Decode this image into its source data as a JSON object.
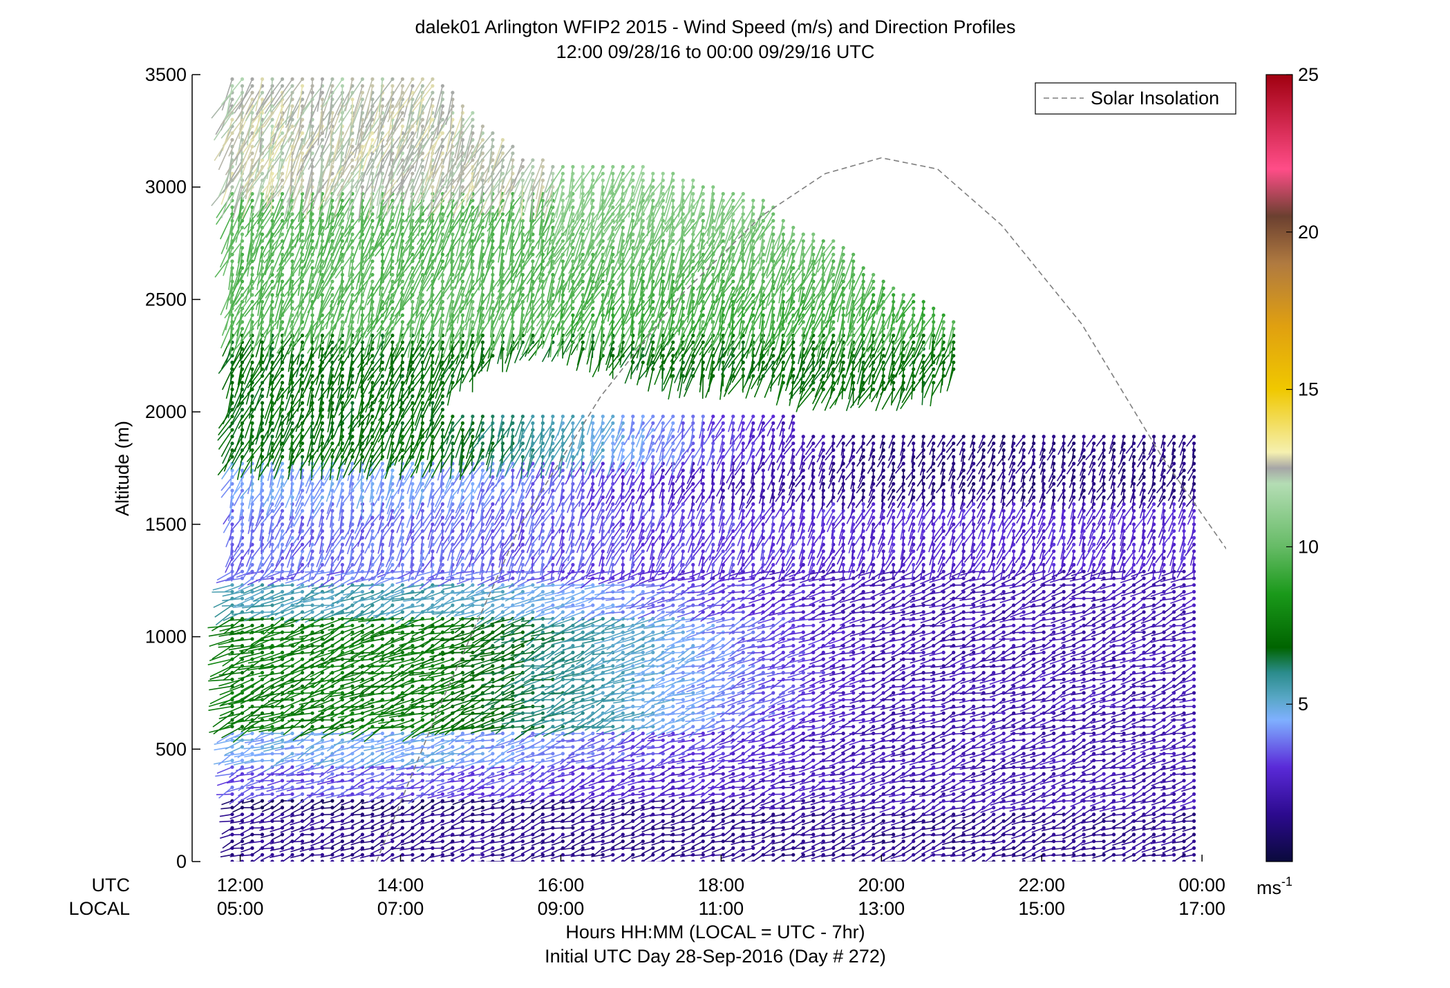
{
  "chart_data": {
    "type": "wind-barb-profile",
    "title": "dalek01 Arlington WFIP2 2015 - Wind Speed (m/s) and Direction Profiles",
    "subtitle": "12:00 09/28/16 to 00:00 09/29/16  UTC",
    "ylabel": "Altitude (m)",
    "xlabel": "Hours HH:MM  (LOCAL = UTC - 7hr)",
    "xlabel2": "Initial UTC Day 28-Sep-2016 (Day # 272)",
    "row_label_utc": "UTC",
    "row_label_local": "LOCAL",
    "ylim": [
      0,
      3500
    ],
    "yticks": [
      0,
      500,
      1000,
      1500,
      2000,
      2500,
      3000,
      3500
    ],
    "xlim_hours": [
      11.4,
      24.3
    ],
    "xticks_hours": [
      12,
      14,
      16,
      18,
      20,
      22,
      24
    ],
    "xtick_labels_utc": [
      "12:00",
      "14:00",
      "16:00",
      "18:00",
      "20:00",
      "22:00",
      "00:00"
    ],
    "xtick_labels_local": [
      "05:00",
      "07:00",
      "09:00",
      "11:00",
      "13:00",
      "15:00",
      "17:00"
    ],
    "legend": {
      "label": "Solar Insolation",
      "placement": "top-right",
      "style": "dashed",
      "color": "#7f7f7f"
    },
    "solar_insolation": {
      "x_hours": [
        13.7,
        14.5,
        15.5,
        16.5,
        17.5,
        18.5,
        19.3,
        20.0,
        20.7,
        21.5,
        22.5,
        23.5,
        24.5
      ],
      "y_m": [
        0,
        700,
        1500,
        2070,
        2520,
        2870,
        3060,
        3130,
        3080,
        2830,
        2390,
        1800,
        1290
      ]
    },
    "colorbar": {
      "label": "ms-1",
      "min": 0,
      "max": 25,
      "ticks": [
        5,
        10,
        15,
        20,
        25
      ],
      "stops": [
        {
          "v": 0,
          "c": "#0a0a3c"
        },
        {
          "v": 1.5,
          "c": "#2c0a8e"
        },
        {
          "v": 3,
          "c": "#5a2ad8"
        },
        {
          "v": 4.5,
          "c": "#7fb0ff"
        },
        {
          "v": 5.2,
          "c": "#58a7c6"
        },
        {
          "v": 6,
          "c": "#2b8c8c"
        },
        {
          "v": 6.8,
          "c": "#006400"
        },
        {
          "v": 8.5,
          "c": "#1a991a"
        },
        {
          "v": 10,
          "c": "#66bb66"
        },
        {
          "v": 12,
          "c": "#b4ddb4"
        },
        {
          "v": 12.5,
          "c": "#a6a6a6"
        },
        {
          "v": 13,
          "c": "#f5f0b0"
        },
        {
          "v": 15,
          "c": "#f0c800"
        },
        {
          "v": 17,
          "c": "#e0a010"
        },
        {
          "v": 19,
          "c": "#b07a40"
        },
        {
          "v": 20.5,
          "c": "#6b4030"
        },
        {
          "v": 22,
          "c": "#ff4d88"
        },
        {
          "v": 25,
          "c": "#a00010"
        }
      ]
    },
    "profiles": {
      "time_step_hours": 0.125,
      "altitude_step_m": 30,
      "max_top_m": 3500,
      "valid_top_m": [
        [
          11.9,
          13.4,
          2330
        ],
        [
          13.4,
          14.6,
          2330
        ],
        [
          14.6,
          16.4,
          2000
        ],
        [
          16.4,
          19.0,
          2000
        ],
        [
          19.0,
          20.5,
          1910
        ],
        [
          20.5,
          23.5,
          1910
        ],
        [
          23.5,
          24.0,
          1910
        ]
      ],
      "upper_layer": {
        "x_hours": [
          11.9,
          12.5,
          13.0,
          13.5,
          14.0,
          14.5,
          15.0,
          15.5,
          16.0,
          16.5,
          17.0,
          17.5,
          18.0,
          18.5,
          19.0,
          19.5,
          20.0,
          20.5,
          21.0
        ],
        "bottom_m": [
          2000,
          2000,
          2000,
          2000,
          2000,
          2100,
          2200,
          2300,
          2300,
          2250,
          2200,
          2150,
          2150,
          2150,
          2100,
          2100,
          2100,
          2100,
          2200
        ],
        "top_m": [
          3500,
          3500,
          3500,
          3500,
          3500,
          3480,
          3300,
          3150,
          3100,
          3100,
          3100,
          3050,
          3000,
          2950,
          2820,
          2750,
          2600,
          2500,
          2380
        ]
      },
      "speed_layers_early": [
        {
          "alt": [
            0,
            230
          ],
          "speed": 1.5
        },
        {
          "alt": [
            230,
            300
          ],
          "speed": 0.8
        },
        {
          "alt": [
            300,
            450
          ],
          "speed": 3.5
        },
        {
          "alt": [
            450,
            600
          ],
          "speed": 4.6
        },
        {
          "alt": [
            600,
            1100
          ],
          "speed": 7.5
        },
        {
          "alt": [
            1100,
            1250
          ],
          "speed": 5.5
        },
        {
          "alt": [
            1250,
            1600
          ],
          "speed": 3.8
        },
        {
          "alt": [
            1600,
            1800
          ],
          "speed": 4.4
        },
        {
          "alt": [
            1800,
            2350
          ],
          "speed": 7.0
        },
        {
          "alt": [
            2350,
            3000
          ],
          "speed": 9.8
        },
        {
          "alt": [
            3000,
            3500
          ],
          "speed": 12.5
        }
      ],
      "speed_layers_late": [
        {
          "alt": [
            0,
            230
          ],
          "speed": 1.5
        },
        {
          "alt": [
            230,
            1300
          ],
          "speed": 2.2
        },
        {
          "alt": [
            1300,
            1600
          ],
          "speed": 2.8
        },
        {
          "alt": [
            1600,
            1910
          ],
          "speed": 1.2
        }
      ]
    },
    "grid": false
  }
}
